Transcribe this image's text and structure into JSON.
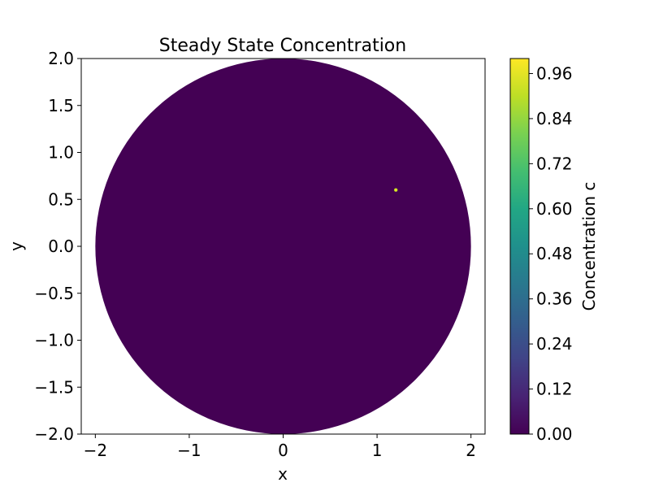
{
  "chart_data": {
    "type": "heatmap",
    "title": "Steady State Concentration",
    "xlabel": "x",
    "ylabel": "y",
    "xlim": [
      -2.15,
      2.15
    ],
    "ylim": [
      -2.0,
      2.0
    ],
    "x_ticks": [
      -2,
      -1,
      0,
      1,
      2
    ],
    "x_tick_labels": [
      "−2",
      "−1",
      "0",
      "1",
      "2"
    ],
    "y_ticks": [
      -2.0,
      -1.5,
      -1.0,
      -0.5,
      0.0,
      0.5,
      1.0,
      1.5,
      2.0
    ],
    "y_tick_labels": [
      "−2.0",
      "−1.5",
      "−1.0",
      "−0.5",
      "0.0",
      "0.5",
      "1.0",
      "1.5",
      "2.0"
    ],
    "domain": {
      "shape": "disk",
      "center": [
        0,
        0
      ],
      "radius": 2.0
    },
    "source": {
      "x": 1.2,
      "y": 0.6,
      "peak": 1.0
    },
    "colorbar": {
      "label": "Concentration c",
      "colormap": "viridis",
      "range": [
        0.0,
        1.0
      ],
      "ticks": [
        0.0,
        0.12,
        0.24,
        0.36,
        0.48,
        0.6,
        0.72,
        0.84,
        0.96
      ],
      "tick_labels": [
        "0.00",
        "0.12",
        "0.24",
        "0.36",
        "0.48",
        "0.60",
        "0.72",
        "0.84",
        "0.96"
      ]
    },
    "grid": false
  }
}
